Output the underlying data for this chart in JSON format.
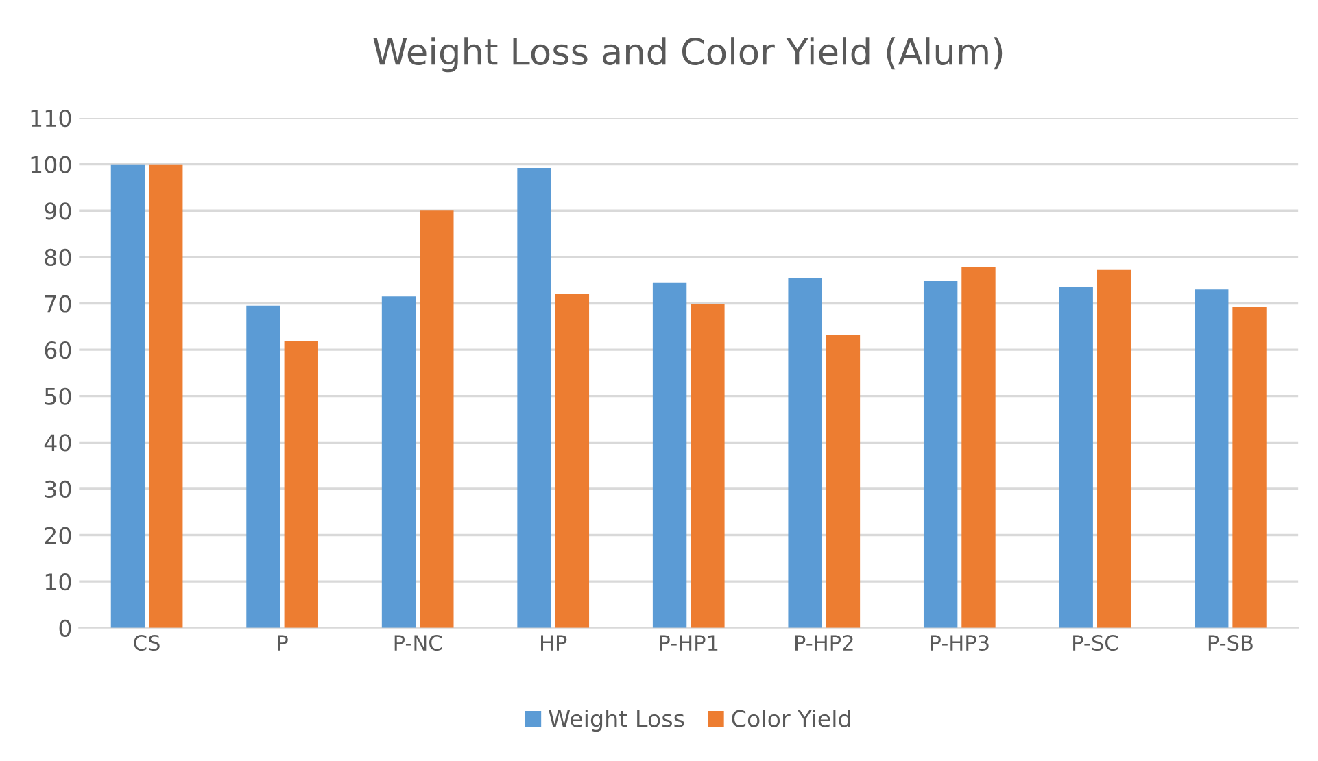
{
  "chart_data": {
    "type": "bar",
    "title": "Weight Loss and Color Yield (Alum)",
    "categories": [
      "CS",
      "P",
      "P-NC",
      "HP",
      "P-HP1",
      "P-HP2",
      "P-HP3",
      "P-SC",
      "P-SB"
    ],
    "series": [
      {
        "name": "Weight Loss",
        "color": "#5b9bd5",
        "values": [
          100,
          69.5,
          71.5,
          99.2,
          74.4,
          75.4,
          74.8,
          73.5,
          73
        ]
      },
      {
        "name": "Color Yield",
        "color": "#ed7d31",
        "values": [
          100,
          61.8,
          90,
          72,
          69.8,
          63.2,
          77.8,
          77.2,
          69.2
        ]
      }
    ],
    "ylim": [
      0,
      110
    ],
    "yticks": [
      0,
      10,
      20,
      30,
      40,
      50,
      60,
      70,
      80,
      90,
      100,
      110
    ],
    "grid": "y",
    "legend": "bottom"
  }
}
